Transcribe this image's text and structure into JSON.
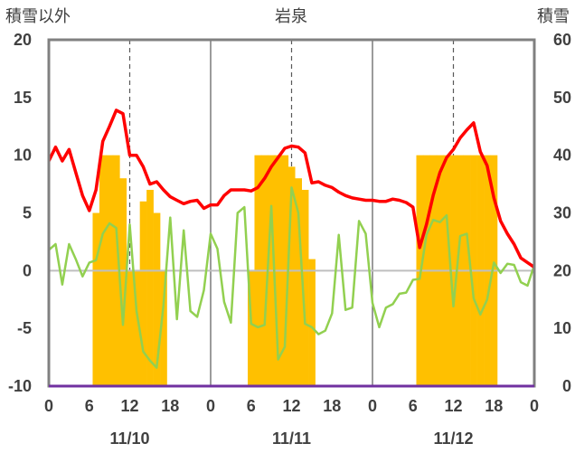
{
  "chart_data": {
    "type": "bar+line",
    "title": "岩泉",
    "ylabel_left": "積雪以外",
    "ylabel_right": "積雪",
    "x_hours": 72,
    "x_tick_labels": [
      "0",
      "6",
      "12",
      "18",
      "0",
      "6",
      "12",
      "18",
      "0",
      "6",
      "12",
      "18",
      "0"
    ],
    "date_labels": [
      "11/10",
      "11/11",
      "11/12"
    ],
    "ylim_left": [
      -10,
      20
    ],
    "left_ticks": [
      "20",
      "15",
      "10",
      "5",
      "0",
      "-5",
      "-10"
    ],
    "ylim_right": [
      0,
      60
    ],
    "right_ticks": [
      "60",
      "50",
      "40",
      "30",
      "20",
      "10",
      "0"
    ],
    "grid": "vertical dashed at 12h, solid at day boundaries",
    "colors": {
      "snow_depth": "#FFC000",
      "temperature": "#FF0000",
      "other": "#92D050",
      "zero_line": "#BFBFBF",
      "base_line": "#7030A0",
      "axis": "#808080"
    },
    "series": [
      {
        "name": "",
        "kind": "bar",
        "axis": "right",
        "color": "#FFC000",
        "values": [
          null,
          null,
          null,
          null,
          null,
          null,
          null,
          30,
          40,
          40,
          40,
          36,
          20,
          20,
          32,
          34,
          30,
          20,
          null,
          null,
          null,
          null,
          null,
          null,
          null,
          null,
          null,
          null,
          null,
          null,
          20,
          40,
          40,
          40,
          40,
          40,
          38,
          36,
          34,
          22,
          null,
          null,
          null,
          null,
          null,
          null,
          null,
          null,
          null,
          null,
          null,
          null,
          null,
          null,
          null,
          40,
          40,
          40,
          40,
          40,
          40,
          40,
          40,
          40,
          40,
          40,
          40,
          null,
          null,
          null,
          null,
          null
        ]
      },
      {
        "name": "",
        "kind": "line",
        "axis": "left",
        "color": "#FF0000",
        "values": [
          9.5,
          10.7,
          9.5,
          10.5,
          8.5,
          6.5,
          5.2,
          7,
          11.2,
          12.5,
          13.9,
          13.6,
          10,
          10,
          9,
          7.5,
          7.7,
          7,
          6.4,
          6.1,
          5.8,
          6,
          6.1,
          5.4,
          5.7,
          5.7,
          6.5,
          7,
          7,
          7,
          6.9,
          7.2,
          8,
          9,
          9.8,
          10.6,
          10.8,
          10.7,
          10.2,
          7.6,
          7.7,
          7.4,
          7.2,
          6.8,
          6.5,
          6.3,
          6.2,
          6.1,
          6.1,
          6.0,
          6.0,
          6.2,
          6.1,
          5.9,
          5.5,
          2.0,
          4.0,
          6.5,
          8.5,
          9.8,
          10.5,
          11.5,
          12.2,
          12.8,
          10.3,
          9.1,
          6.3,
          4.3,
          3.2,
          2.3,
          1.1,
          0.7,
          0.3
        ]
      },
      {
        "name": "",
        "kind": "line",
        "axis": "left",
        "color": "#92D050",
        "values": [
          1.8,
          2.3,
          -1.2,
          2.3,
          1,
          -0.5,
          0.7,
          0.9,
          3.2,
          4.1,
          3.7,
          -4.7,
          4,
          -3.5,
          -7,
          -7.8,
          -8.4,
          -3,
          4.6,
          -4.2,
          3.5,
          -3.5,
          -4,
          -1.7,
          3.2,
          1.9,
          -2.7,
          -4.5,
          5,
          5.5,
          -4.6,
          -4.9,
          -4.7,
          5.6,
          -7.7,
          -6.6,
          7.2,
          5,
          -4.6,
          -4.9,
          -5.5,
          -5.2,
          -3.7,
          3.1,
          -3.4,
          -3.2,
          4.3,
          3.2,
          -2.8,
          -4.9,
          -3.2,
          -2.9,
          -2.0,
          -1.9,
          -0.8,
          -0.7,
          3.1,
          4.4,
          4.2,
          4.8,
          -3.1,
          3,
          3.2,
          -2.4,
          -3.8,
          -2.5,
          0.7,
          -0.2,
          0.6,
          0.5,
          -1,
          -1.3,
          0.5
        ]
      }
    ]
  }
}
